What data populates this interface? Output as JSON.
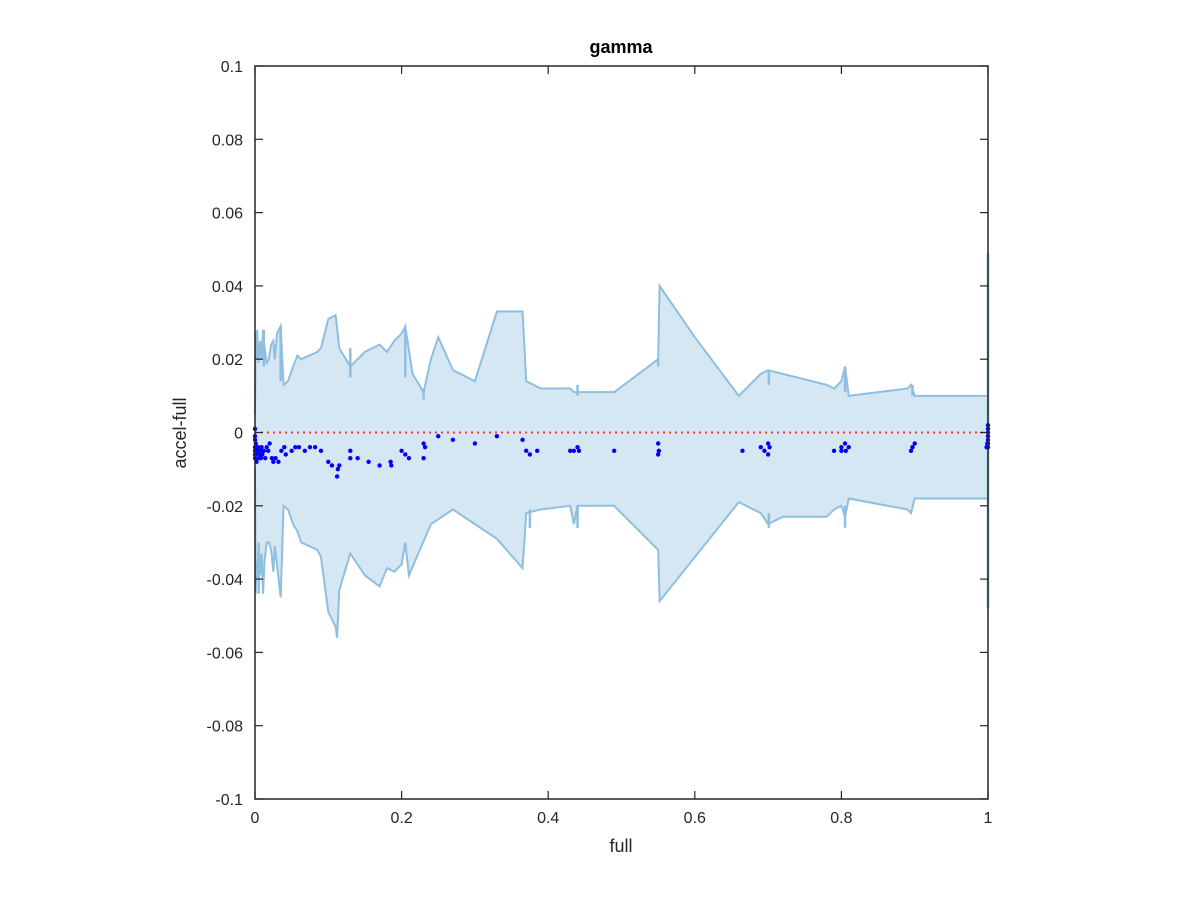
{
  "chart_data": {
    "type": "scatter",
    "title": "gamma",
    "xlabel": "full",
    "ylabel": "accel-full",
    "xlim": [
      0,
      1
    ],
    "ylim": [
      -0.1,
      0.1
    ],
    "x_ticks": [
      0,
      0.2,
      0.4,
      0.6,
      0.8,
      1
    ],
    "x_tick_labels": [
      "0",
      "0.2",
      "0.4",
      "0.6",
      "0.8",
      "1"
    ],
    "y_ticks": [
      0.1,
      0.08,
      0.06,
      0.04,
      0.02,
      0,
      -0.02,
      -0.04,
      -0.06,
      -0.08,
      -0.1
    ],
    "y_tick_labels": [
      "0.1",
      "0.08",
      "0.06",
      "0.04",
      "0.02",
      "0",
      "-0.02",
      "-0.04",
      "-0.06",
      "-0.08",
      "-0.1"
    ],
    "grid": false,
    "legend": "none",
    "colors": {
      "band_fill": "#d6e7f4",
      "band_edge": "#8ebfdf",
      "points": "#0000ff",
      "reference_line": "#ff3b3b",
      "axes": "#262626"
    },
    "reference_line_y": 0,
    "band_upper": [
      [
        0,
        0.005
      ],
      [
        0.001,
        0.027
      ],
      [
        0.002,
        0.02
      ],
      [
        0.003,
        0.028
      ],
      [
        0.005,
        0.019
      ],
      [
        0.007,
        0.025
      ],
      [
        0.009,
        0.02
      ],
      [
        0.011,
        0.028
      ],
      [
        0.013,
        0.023
      ],
      [
        0.016,
        0.019
      ],
      [
        0.019,
        0.02
      ],
      [
        0.022,
        0.024
      ],
      [
        0.025,
        0.025
      ],
      [
        0.027,
        0.02
      ],
      [
        0.03,
        0.027
      ],
      [
        0.035,
        0.029
      ],
      [
        0.039,
        0.013
      ],
      [
        0.045,
        0.014
      ],
      [
        0.052,
        0.018
      ],
      [
        0.058,
        0.021
      ],
      [
        0.063,
        0.02
      ],
      [
        0.085,
        0.022
      ],
      [
        0.09,
        0.023
      ],
      [
        0.1,
        0.031
      ],
      [
        0.11,
        0.032
      ],
      [
        0.115,
        0.023
      ],
      [
        0.13,
        0.018
      ],
      [
        0.15,
        0.022
      ],
      [
        0.17,
        0.024
      ],
      [
        0.18,
        0.022
      ],
      [
        0.19,
        0.025
      ],
      [
        0.2,
        0.027
      ],
      [
        0.205,
        0.029
      ],
      [
        0.215,
        0.016
      ],
      [
        0.23,
        0.011
      ],
      [
        0.24,
        0.02
      ],
      [
        0.25,
        0.026
      ],
      [
        0.27,
        0.017
      ],
      [
        0.3,
        0.014
      ],
      [
        0.33,
        0.033
      ],
      [
        0.365,
        0.033
      ],
      [
        0.37,
        0.014
      ],
      [
        0.39,
        0.012
      ],
      [
        0.43,
        0.012
      ],
      [
        0.435,
        0.011
      ],
      [
        0.44,
        0.011
      ],
      [
        0.49,
        0.011
      ],
      [
        0.55,
        0.02
      ],
      [
        0.552,
        0.04
      ],
      [
        0.6,
        0.026
      ],
      [
        0.66,
        0.01
      ],
      [
        0.69,
        0.016
      ],
      [
        0.7,
        0.017
      ],
      [
        0.72,
        0.016
      ],
      [
        0.78,
        0.013
      ],
      [
        0.79,
        0.012
      ],
      [
        0.8,
        0.014
      ],
      [
        0.805,
        0.018
      ],
      [
        0.81,
        0.01
      ],
      [
        0.89,
        0.012
      ],
      [
        0.895,
        0.013
      ],
      [
        0.9,
        0.01
      ],
      [
        1,
        0.01
      ]
    ],
    "band_lower": [
      [
        0,
        -0.01
      ],
      [
        0.001,
        -0.044
      ],
      [
        0.002,
        -0.035
      ],
      [
        0.003,
        -0.04
      ],
      [
        0.005,
        -0.031
      ],
      [
        0.007,
        -0.039
      ],
      [
        0.009,
        -0.033
      ],
      [
        0.011,
        -0.044
      ],
      [
        0.013,
        -0.035
      ],
      [
        0.016,
        -0.03
      ],
      [
        0.019,
        -0.03
      ],
      [
        0.022,
        -0.032
      ],
      [
        0.025,
        -0.038
      ],
      [
        0.027,
        -0.031
      ],
      [
        0.03,
        -0.036
      ],
      [
        0.035,
        -0.045
      ],
      [
        0.039,
        -0.02
      ],
      [
        0.045,
        -0.021
      ],
      [
        0.052,
        -0.025
      ],
      [
        0.058,
        -0.027
      ],
      [
        0.063,
        -0.03
      ],
      [
        0.085,
        -0.032
      ],
      [
        0.09,
        -0.034
      ],
      [
        0.1,
        -0.049
      ],
      [
        0.11,
        -0.053
      ],
      [
        0.112,
        -0.056
      ],
      [
        0.115,
        -0.043
      ],
      [
        0.13,
        -0.033
      ],
      [
        0.15,
        -0.039
      ],
      [
        0.17,
        -0.042
      ],
      [
        0.18,
        -0.037
      ],
      [
        0.19,
        -0.038
      ],
      [
        0.2,
        -0.036
      ],
      [
        0.205,
        -0.03
      ],
      [
        0.21,
        -0.039
      ],
      [
        0.225,
        -0.032
      ],
      [
        0.24,
        -0.025
      ],
      [
        0.27,
        -0.021
      ],
      [
        0.3,
        -0.025
      ],
      [
        0.33,
        -0.029
      ],
      [
        0.365,
        -0.037
      ],
      [
        0.37,
        -0.022
      ],
      [
        0.39,
        -0.021
      ],
      [
        0.43,
        -0.02
      ],
      [
        0.435,
        -0.025
      ],
      [
        0.44,
        -0.02
      ],
      [
        0.49,
        -0.02
      ],
      [
        0.55,
        -0.032
      ],
      [
        0.552,
        -0.046
      ],
      [
        0.6,
        -0.034
      ],
      [
        0.66,
        -0.019
      ],
      [
        0.69,
        -0.022
      ],
      [
        0.7,
        -0.025
      ],
      [
        0.72,
        -0.023
      ],
      [
        0.78,
        -0.023
      ],
      [
        0.79,
        -0.021
      ],
      [
        0.8,
        -0.02
      ],
      [
        0.805,
        -0.023
      ],
      [
        0.81,
        -0.018
      ],
      [
        0.89,
        -0.021
      ],
      [
        0.895,
        -0.022
      ],
      [
        0.9,
        -0.018
      ],
      [
        1,
        -0.018
      ]
    ],
    "band_spikes": [
      {
        "x": 1.0,
        "y_from": -0.048,
        "y_to": 0.049
      },
      {
        "x": 0.55,
        "y_from": 0.018,
        "y_to": 0.02
      },
      {
        "x": 0.44,
        "y_from": 0.01,
        "y_to": 0.013
      },
      {
        "x": 0.44,
        "y_from": -0.026,
        "y_to": -0.02
      },
      {
        "x": 0.701,
        "y_from": 0.013,
        "y_to": 0.017
      },
      {
        "x": 0.701,
        "y_from": -0.026,
        "y_to": -0.022
      },
      {
        "x": 0.805,
        "y_from": 0.011,
        "y_to": 0.018
      },
      {
        "x": 0.805,
        "y_from": -0.026,
        "y_to": -0.02
      },
      {
        "x": 0.897,
        "y_from": 0.01,
        "y_to": 0.013
      },
      {
        "x": 0.375,
        "y_from": -0.026,
        "y_to": -0.021
      },
      {
        "x": 0.23,
        "y_from": 0.009,
        "y_to": 0.012
      },
      {
        "x": 0.13,
        "y_from": 0.015,
        "y_to": 0.023
      },
      {
        "x": 0.205,
        "y_from": 0.015,
        "y_to": 0.029
      },
      {
        "x": 0.012,
        "y_from": 0.018,
        "y_to": 0.028
      },
      {
        "x": 0.005,
        "y_from": -0.044,
        "y_to": -0.03
      },
      {
        "x": 0.035,
        "y_from": 0.014,
        "y_to": 0.029
      }
    ],
    "series": [
      {
        "points": [
          [
            0.0,
            -0.001
          ],
          [
            0.0,
            -0.002
          ],
          [
            0.0,
            -0.004
          ],
          [
            0.0,
            -0.005
          ],
          [
            0.0,
            -0.006
          ],
          [
            0.0,
            -0.007
          ],
          [
            0.0,
            0.001
          ],
          [
            0.001,
            -0.003
          ],
          [
            0.001,
            -0.006
          ],
          [
            0.002,
            -0.008
          ],
          [
            0.003,
            -0.005
          ],
          [
            0.004,
            -0.004
          ],
          [
            0.005,
            -0.007
          ],
          [
            0.006,
            -0.006
          ],
          [
            0.007,
            -0.005
          ],
          [
            0.008,
            -0.007
          ],
          [
            0.009,
            -0.004
          ],
          [
            0.01,
            -0.006
          ],
          [
            0.012,
            -0.005
          ],
          [
            0.014,
            -0.007
          ],
          [
            0.016,
            -0.004
          ],
          [
            0.018,
            -0.005
          ],
          [
            0.02,
            -0.003
          ],
          [
            0.023,
            -0.007
          ],
          [
            0.025,
            -0.008
          ],
          [
            0.028,
            -0.007
          ],
          [
            0.032,
            -0.008
          ],
          [
            0.036,
            -0.005
          ],
          [
            0.04,
            -0.004
          ],
          [
            0.042,
            -0.006
          ],
          [
            0.05,
            -0.005
          ],
          [
            0.055,
            -0.004
          ],
          [
            0.06,
            -0.004
          ],
          [
            0.068,
            -0.005
          ],
          [
            0.075,
            -0.004
          ],
          [
            0.082,
            -0.004
          ],
          [
            0.09,
            -0.005
          ],
          [
            0.1,
            -0.008
          ],
          [
            0.105,
            -0.009
          ],
          [
            0.112,
            -0.012
          ],
          [
            0.113,
            -0.01
          ],
          [
            0.115,
            -0.009
          ],
          [
            0.13,
            -0.005
          ],
          [
            0.13,
            -0.007
          ],
          [
            0.14,
            -0.007
          ],
          [
            0.155,
            -0.008
          ],
          [
            0.17,
            -0.009
          ],
          [
            0.185,
            -0.008
          ],
          [
            0.186,
            -0.009
          ],
          [
            0.2,
            -0.005
          ],
          [
            0.205,
            -0.006
          ],
          [
            0.21,
            -0.007
          ],
          [
            0.23,
            -0.003
          ],
          [
            0.23,
            -0.007
          ],
          [
            0.232,
            -0.004
          ],
          [
            0.25,
            -0.001
          ],
          [
            0.27,
            -0.002
          ],
          [
            0.3,
            -0.003
          ],
          [
            0.33,
            -0.001
          ],
          [
            0.365,
            -0.002
          ],
          [
            0.37,
            -0.005
          ],
          [
            0.375,
            -0.006
          ],
          [
            0.385,
            -0.005
          ],
          [
            0.43,
            -0.005
          ],
          [
            0.435,
            -0.005
          ],
          [
            0.44,
            -0.004
          ],
          [
            0.442,
            -0.005
          ],
          [
            0.49,
            -0.005
          ],
          [
            0.55,
            -0.003
          ],
          [
            0.55,
            -0.006
          ],
          [
            0.551,
            -0.005
          ],
          [
            0.665,
            -0.005
          ],
          [
            0.69,
            -0.004
          ],
          [
            0.695,
            -0.005
          ],
          [
            0.7,
            -0.003
          ],
          [
            0.7,
            -0.006
          ],
          [
            0.702,
            -0.004
          ],
          [
            0.79,
            -0.005
          ],
          [
            0.8,
            -0.004
          ],
          [
            0.8,
            -0.005
          ],
          [
            0.805,
            -0.003
          ],
          [
            0.806,
            -0.005
          ],
          [
            0.81,
            -0.004
          ],
          [
            0.895,
            -0.005
          ],
          [
            0.897,
            -0.004
          ],
          [
            0.9,
            -0.003
          ],
          [
            1.0,
            -0.004
          ],
          [
            1.0,
            -0.003
          ],
          [
            1.0,
            -0.002
          ],
          [
            1.0,
            -0.001
          ],
          [
            1.0,
            0.0
          ],
          [
            1.0,
            0.001
          ],
          [
            1.0,
            0.002
          ],
          [
            0.999,
            -0.003
          ],
          [
            0.998,
            -0.004
          ]
        ]
      }
    ]
  }
}
